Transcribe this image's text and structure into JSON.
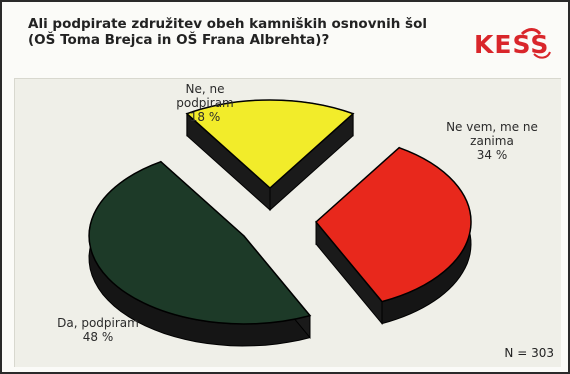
{
  "header": {
    "title_line1": "Ali podpirate združitev obeh kamniških osnovnih šol",
    "title_line2": "(OŠ Toma Brejca in OŠ Frana Albrehta)?"
  },
  "logo": {
    "text": "KESS",
    "colors": [
      "#d9262b",
      "#c8102e"
    ]
  },
  "footer": {
    "sample": "N = 303"
  },
  "chart_data": {
    "type": "pie",
    "style": "3d-exploded",
    "slices": [
      {
        "label_line1": "Ne, ne",
        "label_line2": "podpiram",
        "value_label": "18 %",
        "value": 18,
        "color": "#f2ec2a"
      },
      {
        "label_line1": "Ne vem, me ne",
        "label_line2": "zanima",
        "value_label": "34 %",
        "value": 34,
        "color": "#e8281c"
      },
      {
        "label_line1": "Da, podpiram",
        "label_line2": "",
        "value_label": "48 %",
        "value": 48,
        "color": "#1d3a28"
      }
    ]
  }
}
